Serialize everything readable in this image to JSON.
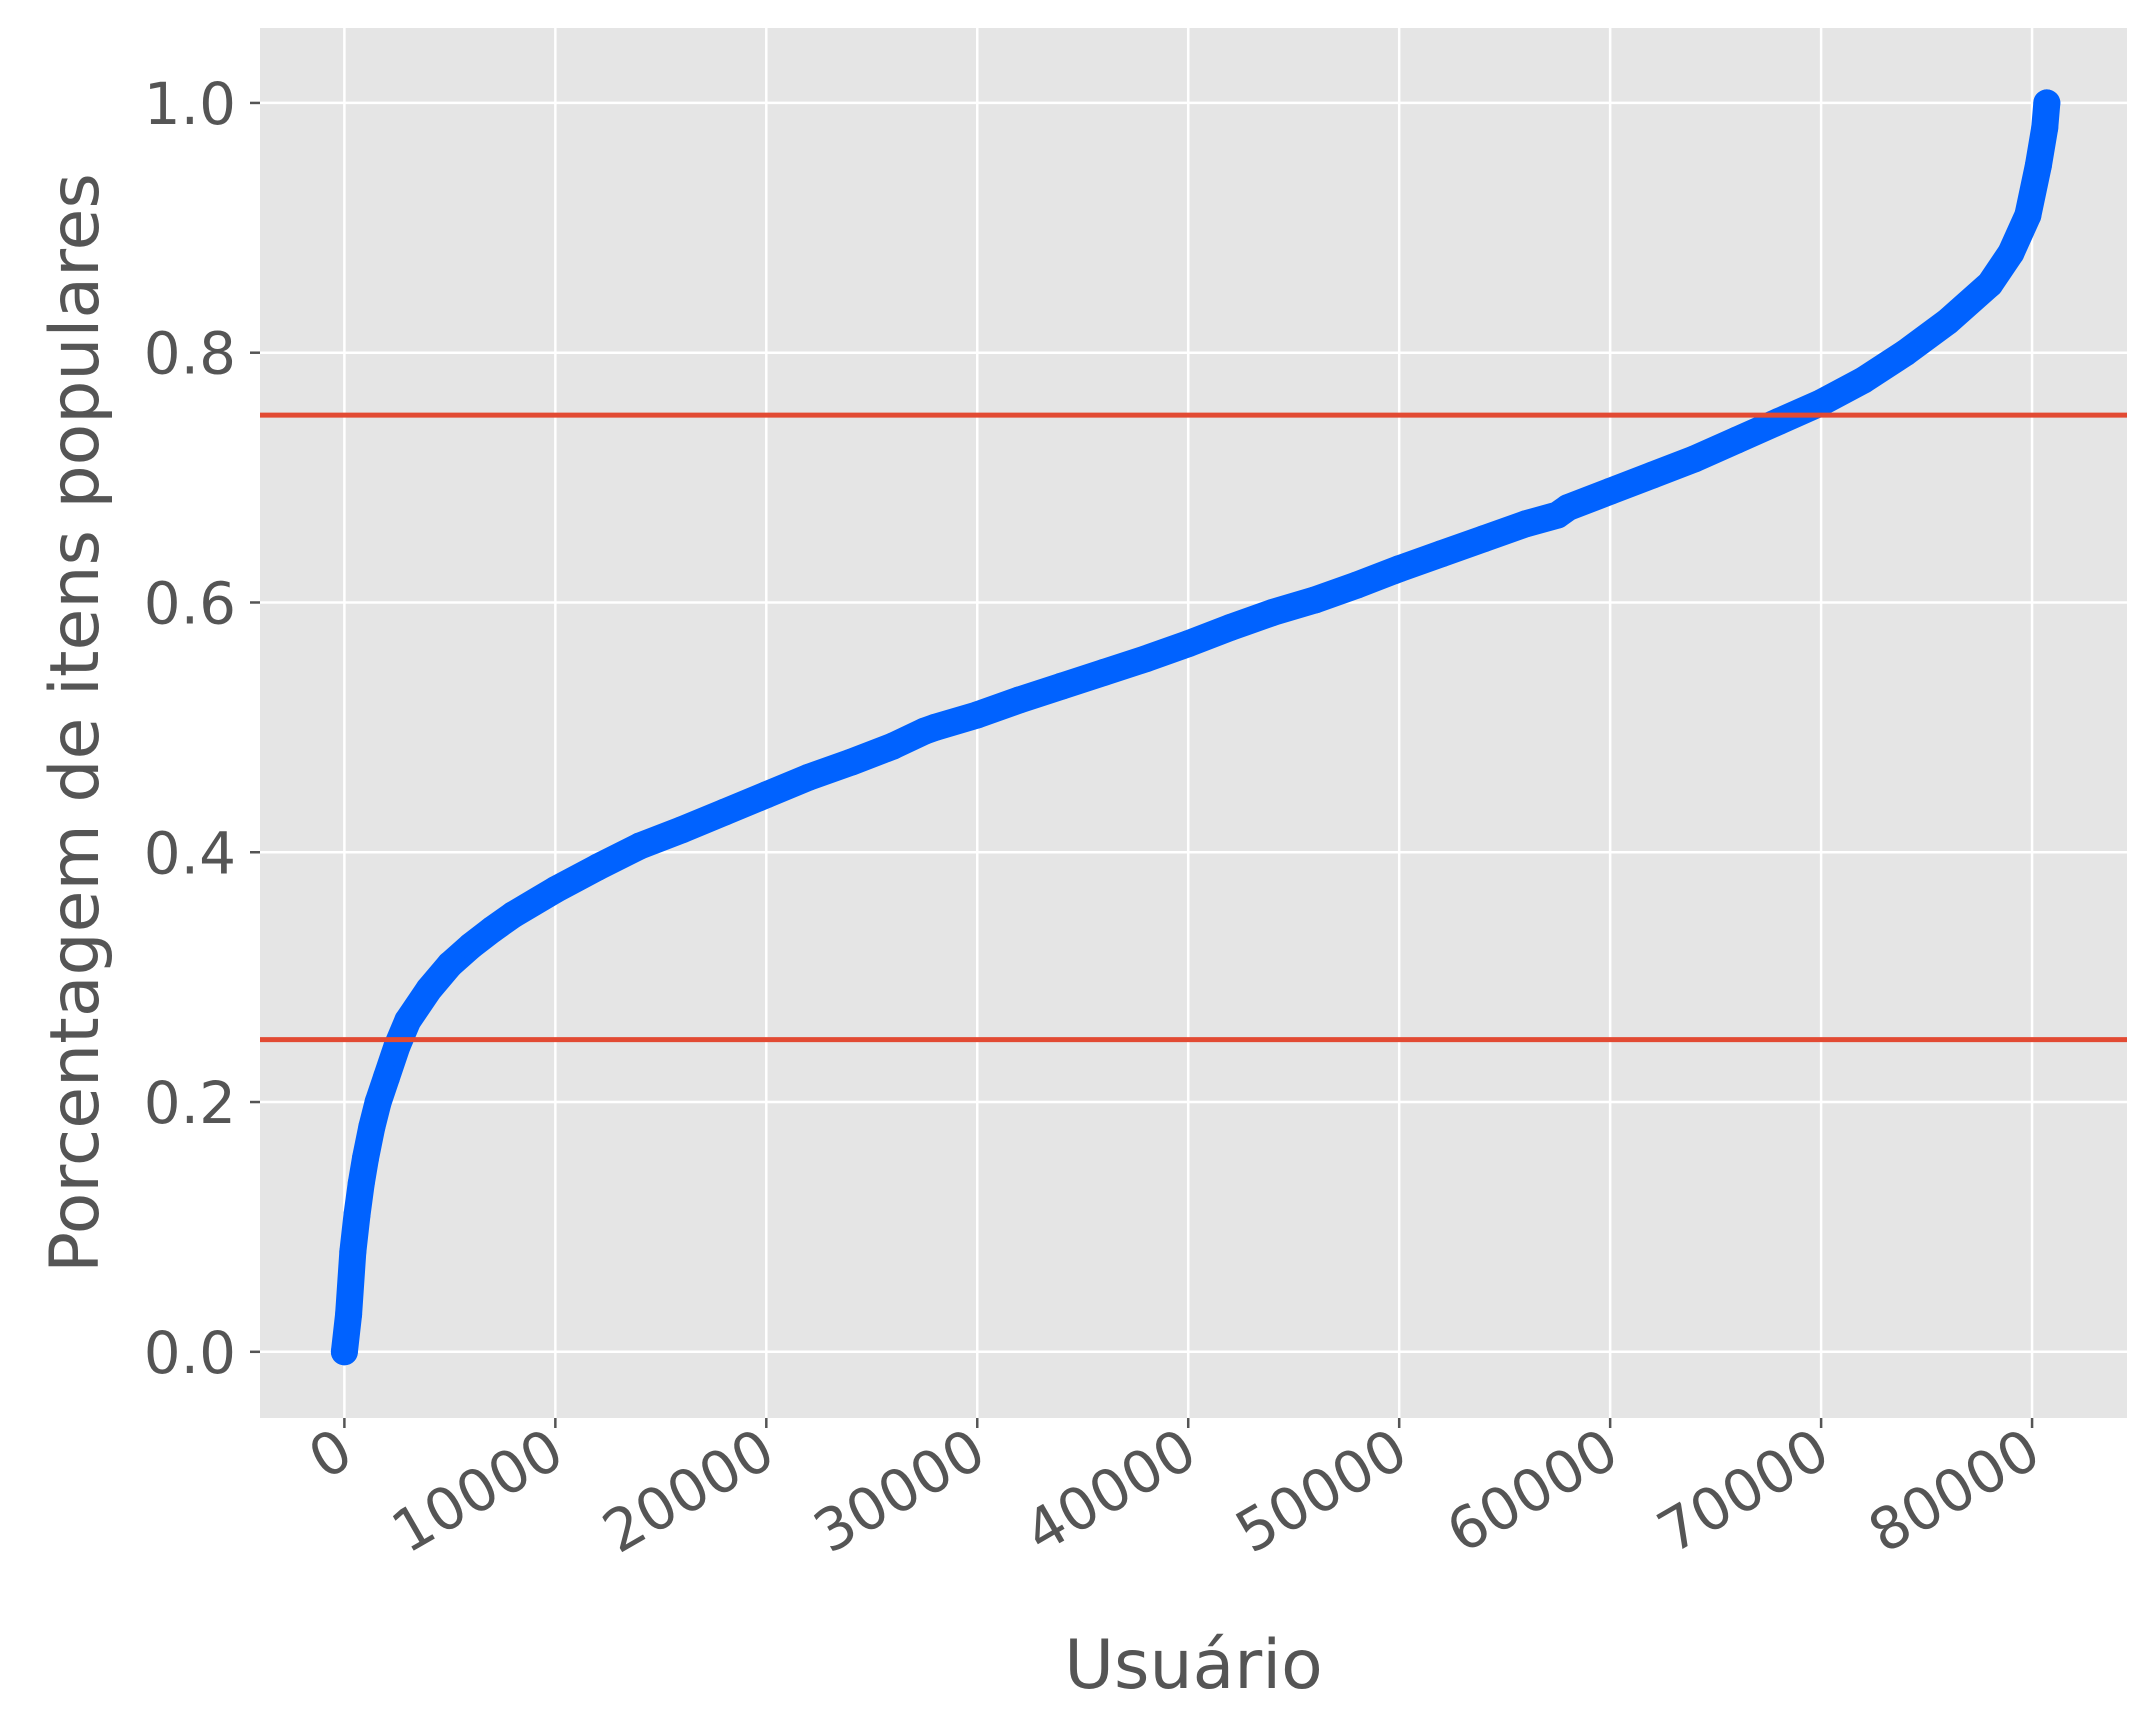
{
  "chart_data": {
    "type": "scatter",
    "xlabel": "Usuário",
    "ylabel": "Porcentagem de itens populares",
    "xlim": [
      -4000,
      84500
    ],
    "ylim": [
      -0.053,
      1.06
    ],
    "xticks": [
      0,
      10000,
      20000,
      30000,
      40000,
      50000,
      60000,
      70000,
      80000
    ],
    "xtick_labels": [
      "0",
      "10000",
      "20000",
      "30000",
      "40000",
      "50000",
      "60000",
      "70000",
      "80000"
    ],
    "yticks": [
      0.0,
      0.2,
      0.4,
      0.6,
      0.8,
      1.0
    ],
    "ytick_labels": [
      "0.0",
      "0.2",
      "0.4",
      "0.6",
      "0.8",
      "1.0"
    ],
    "grid": true,
    "background": "#e5e5e5",
    "series": [
      {
        "color": "#0062ff",
        "marker": "circle",
        "x": [
          0,
          200,
          400,
          600,
          800,
          1000,
          1300,
          1600,
          2000,
          2500,
          3000,
          4000,
          5000,
          6000,
          7000,
          8000,
          10000,
          12000,
          14000,
          16000,
          18000,
          20000,
          22000,
          24000,
          26000,
          27500,
          28000,
          30000,
          32000,
          34000,
          36000,
          38000,
          40000,
          42000,
          44000,
          46000,
          48000,
          50000,
          52000,
          54000,
          56000,
          57500,
          58000,
          60000,
          62000,
          64000,
          66000,
          68000,
          70000,
          72000,
          74000,
          76000,
          78000,
          79000,
          79800,
          80300,
          80600,
          80700
        ],
        "y": [
          0.0,
          0.03,
          0.08,
          0.11,
          0.135,
          0.155,
          0.18,
          0.2,
          0.22,
          0.245,
          0.265,
          0.29,
          0.31,
          0.325,
          0.338,
          0.35,
          0.37,
          0.388,
          0.405,
          0.418,
          0.432,
          0.446,
          0.46,
          0.472,
          0.485,
          0.497,
          0.5,
          0.51,
          0.522,
          0.533,
          0.544,
          0.555,
          0.567,
          0.58,
          0.592,
          0.602,
          0.614,
          0.627,
          0.639,
          0.651,
          0.663,
          0.67,
          0.676,
          0.689,
          0.702,
          0.715,
          0.73,
          0.745,
          0.76,
          0.778,
          0.8,
          0.825,
          0.855,
          0.88,
          0.91,
          0.95,
          0.98,
          1.0
        ]
      }
    ],
    "reference_lines": [
      {
        "orientation": "horizontal",
        "y": 0.75,
        "color": "#e24a33"
      },
      {
        "orientation": "horizontal",
        "y": 0.25,
        "color": "#e24a33"
      }
    ]
  }
}
